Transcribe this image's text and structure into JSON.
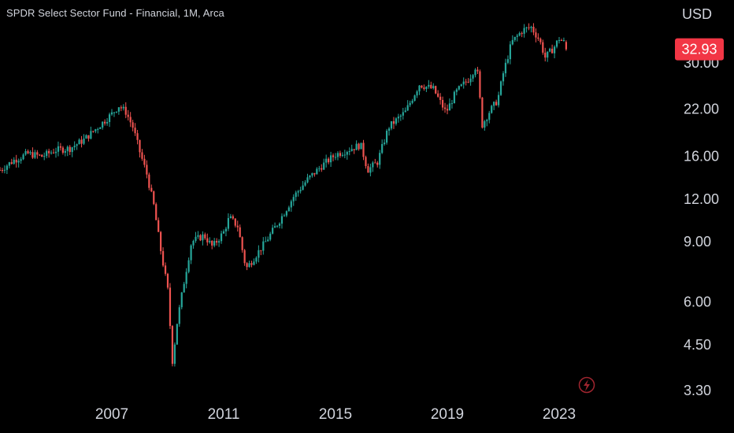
{
  "header": {
    "title": "SPDR Select Sector Fund - Financial, 1M, Arca",
    "currency": "USD"
  },
  "colors": {
    "up": "#26a69a",
    "down": "#ef5350",
    "background": "#000000",
    "text": "#d1d4dc",
    "last_price_bg": "#f23645"
  },
  "icons": {
    "bolt": "lightning-bolt-icon"
  },
  "chart_data": {
    "type": "candlestick",
    "interval": "1M",
    "scale": "log",
    "grid": false,
    "ylim": [
      3.1,
      44
    ],
    "xlim": [
      2003.0,
      2027.0
    ],
    "y_ticks": [
      "3.30",
      "4.50",
      "6.00",
      "9.00",
      "12.00",
      "16.00",
      "22.00",
      "30.00"
    ],
    "x_ticks": [
      "2007",
      "2011",
      "2015",
      "2019",
      "2023"
    ],
    "last_price": "32.93",
    "anchors": [
      [
        2003.0,
        14.6
      ],
      [
        2003.5,
        15.6
      ],
      [
        2004.0,
        16.3
      ],
      [
        2004.5,
        16.0
      ],
      [
        2005.0,
        16.7
      ],
      [
        2005.5,
        16.9
      ],
      [
        2006.0,
        17.9
      ],
      [
        2006.5,
        19.5
      ],
      [
        2007.0,
        21.3
      ],
      [
        2007.25,
        22.5
      ],
      [
        2007.5,
        21.6
      ],
      [
        2007.75,
        19.5
      ],
      [
        2008.0,
        16.5
      ],
      [
        2008.25,
        14.2
      ],
      [
        2008.5,
        11.5
      ],
      [
        2008.75,
        8.5
      ],
      [
        2009.0,
        6.5
      ],
      [
        2009.17,
        4.0
      ],
      [
        2009.33,
        5.2
      ],
      [
        2009.6,
        7.0
      ],
      [
        2009.85,
        9.0
      ],
      [
        2010.3,
        9.4
      ],
      [
        2010.6,
        8.7
      ],
      [
        2011.0,
        9.6
      ],
      [
        2011.2,
        10.6
      ],
      [
        2011.5,
        10.0
      ],
      [
        2011.8,
        7.5
      ],
      [
        2012.0,
        7.9
      ],
      [
        2012.5,
        9.0
      ],
      [
        2013.0,
        10.4
      ],
      [
        2013.5,
        12.2
      ],
      [
        2014.0,
        13.7
      ],
      [
        2014.5,
        15.0
      ],
      [
        2015.0,
        16.2
      ],
      [
        2015.5,
        16.8
      ],
      [
        2015.9,
        17.3
      ],
      [
        2016.15,
        14.6
      ],
      [
        2016.5,
        15.4
      ],
      [
        2016.9,
        19.5
      ],
      [
        2017.5,
        21.6
      ],
      [
        2018.0,
        26.0
      ],
      [
        2018.5,
        25.2
      ],
      [
        2018.95,
        21.5
      ],
      [
        2019.3,
        24.6
      ],
      [
        2019.8,
        27.2
      ],
      [
        2020.05,
        29.8
      ],
      [
        2020.25,
        19.8
      ],
      [
        2020.5,
        21.6
      ],
      [
        2020.8,
        23.4
      ],
      [
        2021.0,
        28.0
      ],
      [
        2021.3,
        34.5
      ],
      [
        2021.7,
        37.5
      ],
      [
        2022.0,
        38.2
      ],
      [
        2022.3,
        35.0
      ],
      [
        2022.5,
        31.2
      ],
      [
        2022.8,
        33.2
      ],
      [
        2023.0,
        35.4
      ],
      [
        2023.2,
        34.4
      ],
      [
        2023.3,
        32.9
      ]
    ]
  }
}
